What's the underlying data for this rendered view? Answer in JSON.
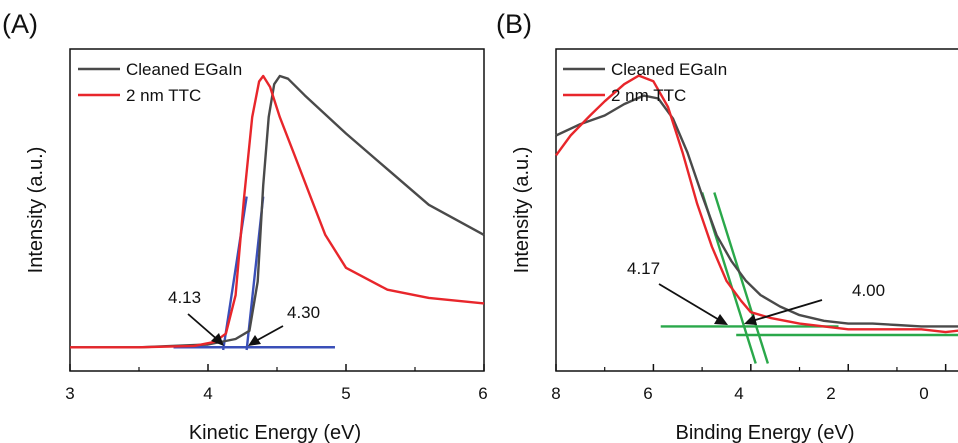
{
  "chart_data": [
    {
      "type": "line",
      "panel_label": "(A)",
      "xlabel": "Kinetic Energy (eV)",
      "ylabel": "Intensity (a.u.)",
      "xlim": [
        3,
        6
      ],
      "xticks": [
        "3",
        "4",
        "5",
        "6"
      ],
      "legend_position": "top-left",
      "series": [
        {
          "name": "Cleaned EGaIn",
          "color": "#4a4a4a",
          "x": [
            3.0,
            3.5,
            4.0,
            4.2,
            4.3,
            4.36,
            4.4,
            4.44,
            4.48,
            4.52,
            4.58,
            4.7,
            4.85,
            5.0,
            5.3,
            5.6,
            6.0
          ],
          "y": [
            0.01,
            0.01,
            0.02,
            0.04,
            0.07,
            0.25,
            0.6,
            0.85,
            0.97,
            1.0,
            0.99,
            0.93,
            0.86,
            0.79,
            0.66,
            0.53,
            0.42
          ]
        },
        {
          "name": "2 nm TTC",
          "color": "#e8262b",
          "x": [
            3.0,
            3.5,
            3.9,
            4.05,
            4.13,
            4.2,
            4.26,
            4.32,
            4.37,
            4.4,
            4.45,
            4.52,
            4.62,
            4.75,
            4.85,
            5.0,
            5.3,
            5.6,
            6.0
          ],
          "y": [
            0.01,
            0.01,
            0.015,
            0.03,
            0.06,
            0.2,
            0.55,
            0.85,
            0.98,
            1.0,
            0.96,
            0.85,
            0.72,
            0.55,
            0.42,
            0.3,
            0.22,
            0.19,
            0.17
          ]
        }
      ],
      "guide_lines": [
        {
          "color": "#3a4fb8",
          "points": [
            [
              4.11,
              0.0
            ],
            [
              4.28,
              0.56
            ]
          ]
        },
        {
          "color": "#3a4fb8",
          "points": [
            [
              4.28,
              0.0
            ],
            [
              4.4,
              0.56
            ]
          ]
        },
        {
          "color": "#3a4fb8",
          "points": [
            [
              3.75,
              0.01
            ],
            [
              4.92,
              0.01
            ]
          ]
        }
      ],
      "annotations": [
        {
          "text": "4.13",
          "x": 4.13
        },
        {
          "text": "4.30",
          "x": 4.3
        }
      ]
    },
    {
      "type": "line",
      "panel_label": "(B)",
      "xlabel": "Binding Energy (eV)",
      "ylabel": "Intensity (a.u.)",
      "xlim": [
        8,
        -0.5
      ],
      "xticks": [
        "8",
        "6",
        "4",
        "2",
        "0"
      ],
      "legend_position": "top-left",
      "series": [
        {
          "name": "Cleaned EGaIn",
          "color": "#4a4a4a",
          "x": [
            8.0,
            7.5,
            7.0,
            6.6,
            6.2,
            5.9,
            5.6,
            5.3,
            5.0,
            4.7,
            4.4,
            4.1,
            3.8,
            3.4,
            3.0,
            2.5,
            2.0,
            1.5,
            1.0,
            0.5,
            0.0,
            -0.5
          ],
          "y": [
            0.7,
            0.74,
            0.77,
            0.81,
            0.84,
            0.83,
            0.76,
            0.64,
            0.49,
            0.35,
            0.26,
            0.19,
            0.14,
            0.1,
            0.07,
            0.05,
            0.04,
            0.04,
            0.035,
            0.03,
            0.03,
            0.03
          ]
        },
        {
          "name": "2 nm TTC",
          "color": "#e8262b",
          "x": [
            8.0,
            7.7,
            7.3,
            7.0,
            6.6,
            6.3,
            6.0,
            5.7,
            5.4,
            5.1,
            4.8,
            4.5,
            4.2,
            4.0,
            3.6,
            3.0,
            2.5,
            2.0,
            1.5,
            1.0,
            0.5,
            0.0,
            -0.5
          ],
          "y": [
            0.63,
            0.7,
            0.77,
            0.82,
            0.88,
            0.91,
            0.89,
            0.8,
            0.64,
            0.46,
            0.31,
            0.19,
            0.12,
            0.08,
            0.06,
            0.04,
            0.03,
            0.02,
            0.02,
            0.02,
            0.02,
            0.01,
            0.02
          ]
        }
      ],
      "guide_lines": [
        {
          "color": "#2aa84a",
          "points": [
            [
              5.0,
              0.5
            ],
            [
              3.9,
              -0.1
            ]
          ]
        },
        {
          "color": "#2aa84a",
          "points": [
            [
              4.75,
              0.5
            ],
            [
              3.65,
              -0.1
            ]
          ]
        },
        {
          "color": "#2aa84a",
          "points": [
            [
              5.85,
              0.03
            ],
            [
              2.2,
              0.03
            ]
          ]
        },
        {
          "color": "#2aa84a",
          "points": [
            [
              4.3,
              0.0
            ],
            [
              -0.5,
              0.0
            ]
          ]
        }
      ],
      "annotations": [
        {
          "text": "4.17",
          "x": 4.17
        },
        {
          "text": "4.00",
          "x": 4.0
        }
      ]
    }
  ]
}
